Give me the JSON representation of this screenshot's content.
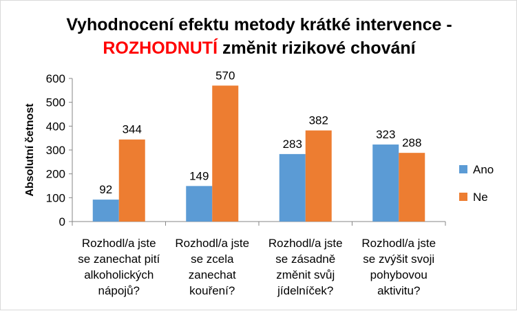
{
  "chart_data": {
    "type": "bar",
    "title_line1": "Vyhodnocení efektu metody krátké intervence -",
    "title_line2_accent": "ROZHODNUTÍ",
    "title_line2_rest": " změnit rizikové chování",
    "xlabel": "",
    "ylabel": "Absolutní četnost",
    "ylim": [
      0,
      600
    ],
    "yticks": [
      0,
      100,
      200,
      300,
      400,
      500,
      600
    ],
    "grid": false,
    "legend_position": "right",
    "categories": [
      [
        "Rozhodl/a jste",
        "se zanechat pití",
        "alkoholických",
        "nápojů?"
      ],
      [
        "Rozhodl/a jste",
        "se zcela",
        "zanechat",
        "kouření?"
      ],
      [
        "Rozhodl/a jste",
        "se zásadně",
        "změnit svůj",
        "jídelníček?"
      ],
      [
        "Rozhodl/a jste",
        "se zvýšit svoji",
        "pohybovou",
        "aktivitu?"
      ]
    ],
    "series": [
      {
        "name": "Ano",
        "color": "#5b9bd5",
        "values": [
          92,
          149,
          283,
          323
        ]
      },
      {
        "name": "Ne",
        "color": "#ed7d31",
        "values": [
          344,
          570,
          382,
          288
        ]
      }
    ]
  }
}
